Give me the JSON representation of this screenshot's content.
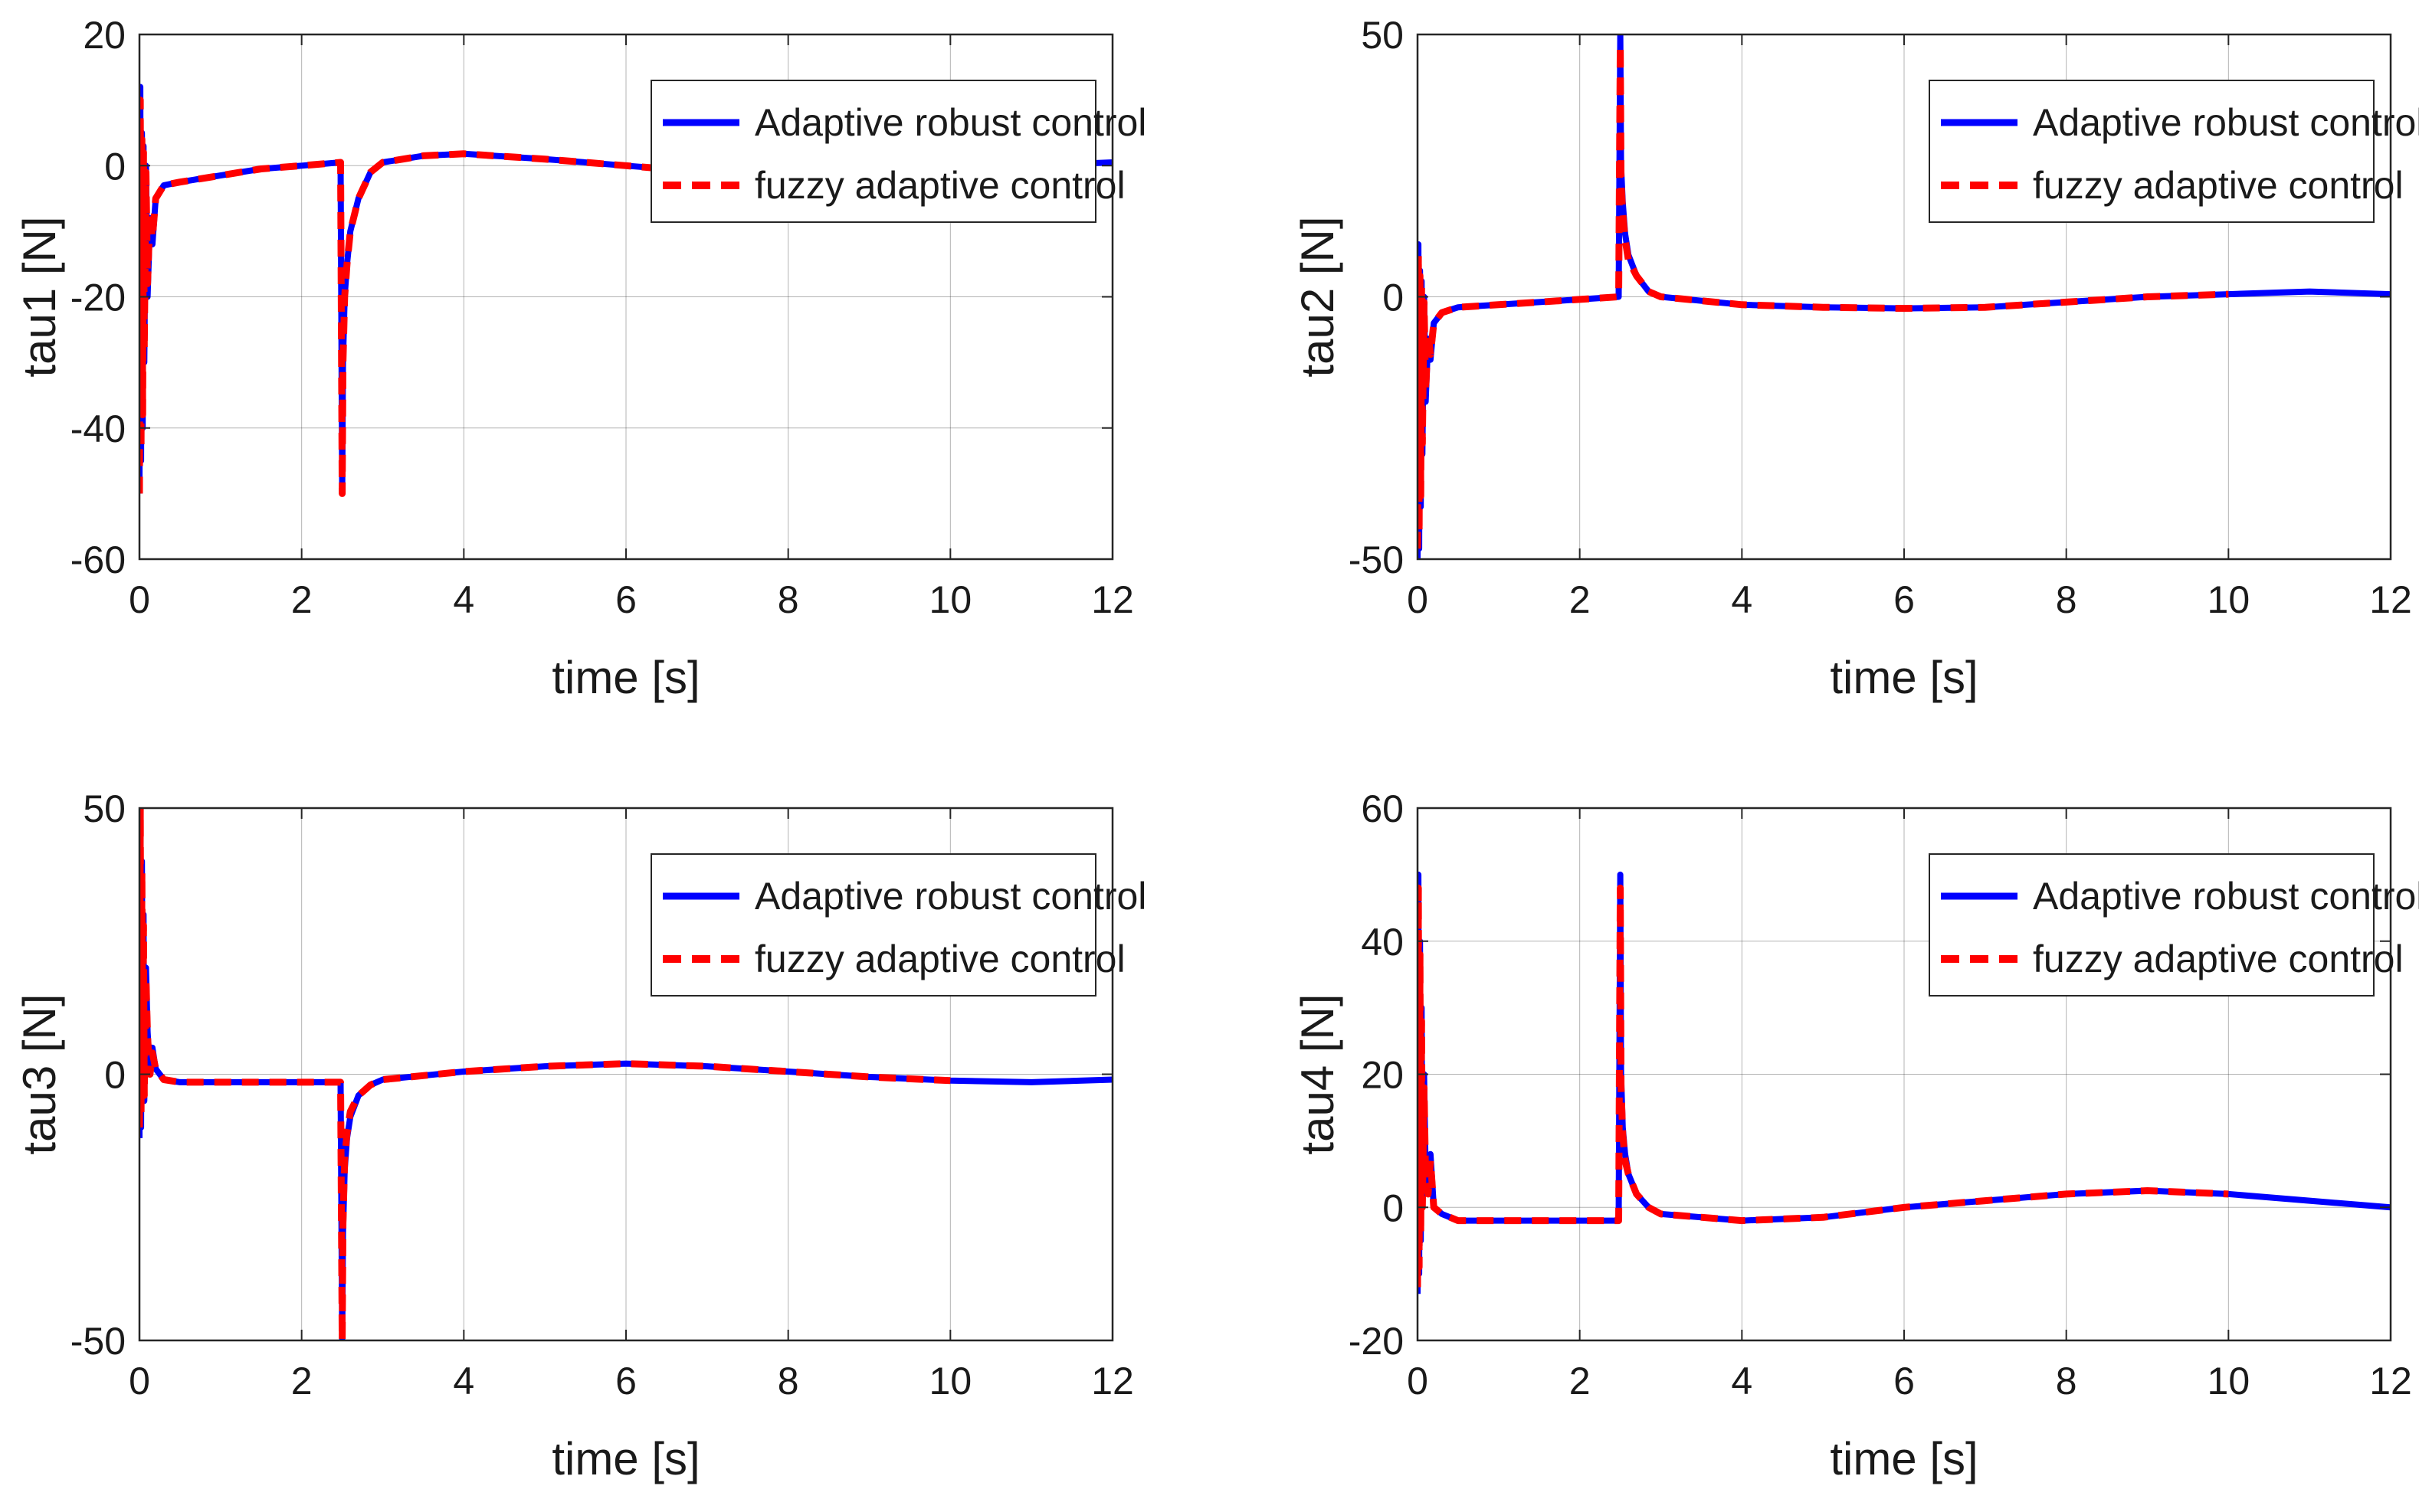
{
  "figure": {
    "colors": {
      "adaptive": "#0000ff",
      "fuzzy": "#ff0000",
      "grid": "#262626"
    },
    "xlabel_common": "time [s]"
  },
  "chart_data": [
    {
      "type": "line",
      "title": "",
      "xlabel": "time [s]",
      "ylabel": "tau1 [N]",
      "xlim": [
        0,
        12
      ],
      "ylim": [
        -60,
        20
      ],
      "xticks": [
        "0",
        "2",
        "4",
        "6",
        "8",
        "10",
        "12"
      ],
      "yticks": [
        "-60",
        "-40",
        "-20",
        "0",
        "20"
      ],
      "legend": {
        "position": "top-right",
        "entries": [
          "Adaptive robust control",
          "fuzzy adaptive control"
        ]
      },
      "series": [
        {
          "name": "Adaptive robust control",
          "x": [
            0,
            0.01,
            0.02,
            0.03,
            0.04,
            0.05,
            0.06,
            0.08,
            0.1,
            0.13,
            0.16,
            0.2,
            0.3,
            0.5,
            1,
            1.5,
            2,
            2.48,
            2.5,
            2.51,
            2.53,
            2.56,
            2.6,
            2.7,
            2.85,
            3,
            3.5,
            4,
            5,
            6,
            7,
            8,
            9,
            10,
            11,
            12
          ],
          "y": [
            -50,
            12,
            -45,
            5,
            -40,
            3,
            -30,
            0,
            -20,
            -8,
            -12,
            -5,
            -3,
            -2.5,
            -1.5,
            -0.5,
            0,
            0.5,
            -50,
            -30,
            -20,
            -15,
            -10,
            -5,
            -1,
            0.5,
            1.5,
            1.8,
            1,
            0,
            -1,
            -1.5,
            -1,
            -0.5,
            0,
            0.5
          ]
        },
        {
          "name": "fuzzy adaptive control",
          "x": [
            0,
            0.01,
            0.02,
            0.03,
            0.04,
            0.05,
            0.06,
            0.08,
            0.1,
            0.13,
            0.16,
            0.2,
            0.3,
            0.5,
            1,
            1.5,
            2,
            2.48,
            2.5,
            2.51,
            2.53,
            2.56,
            2.6,
            2.7,
            2.85,
            3,
            3.5,
            4,
            5,
            6,
            7,
            8,
            9,
            10
          ],
          "y": [
            -50,
            10,
            -43,
            4,
            -38,
            2,
            -28,
            -1,
            -18,
            -7,
            -11,
            -5,
            -3,
            -2.5,
            -1.5,
            -0.5,
            0,
            0.5,
            -50,
            -30,
            -20,
            -15,
            -10,
            -5,
            -1,
            0.5,
            1.5,
            1.8,
            1,
            0,
            -1,
            -1.5,
            -1,
            -0.5
          ]
        }
      ]
    },
    {
      "type": "line",
      "title": "",
      "xlabel": "time [s]",
      "ylabel": "tau2 [N]",
      "xlim": [
        0,
        12
      ],
      "ylim": [
        -50,
        50
      ],
      "xticks": [
        "0",
        "2",
        "4",
        "6",
        "8",
        "10",
        "12"
      ],
      "yticks": [
        "-50",
        "0",
        "50"
      ],
      "legend": {
        "position": "top-right",
        "entries": [
          "Adaptive robust control",
          "fuzzy adaptive control"
        ]
      },
      "series": [
        {
          "name": "Adaptive robust control",
          "x": [
            0,
            0.01,
            0.02,
            0.03,
            0.04,
            0.05,
            0.06,
            0.08,
            0.1,
            0.13,
            0.16,
            0.2,
            0.3,
            0.5,
            1,
            1.5,
            2,
            2.48,
            2.5,
            2.51,
            2.53,
            2.56,
            2.6,
            2.7,
            2.85,
            3,
            4,
            5,
            6,
            7,
            8,
            9,
            10,
            11,
            12
          ],
          "y": [
            -50,
            10,
            -48,
            5,
            -40,
            3,
            -30,
            0,
            -20,
            -8,
            -12,
            -5,
            -3,
            -2,
            -1.5,
            -1,
            -0.5,
            0,
            50,
            25,
            18,
            12,
            8,
            4,
            1,
            0,
            -1.5,
            -2,
            -2.2,
            -2,
            -1,
            0,
            0.5,
            1,
            0.5
          ]
        },
        {
          "name": "fuzzy adaptive control",
          "x": [
            0,
            0.01,
            0.02,
            0.03,
            0.04,
            0.05,
            0.06,
            0.08,
            0.1,
            0.13,
            0.16,
            0.2,
            0.3,
            0.5,
            1,
            1.5,
            2,
            2.48,
            2.5,
            2.51,
            2.53,
            2.56,
            2.6,
            2.7,
            2.85,
            3,
            4,
            5,
            6,
            7,
            8,
            9,
            10
          ],
          "y": [
            -48,
            8,
            -45,
            4,
            -38,
            2,
            -28,
            -1,
            -18,
            -7,
            -11,
            -5,
            -3,
            -2,
            -1.5,
            -1,
            -0.5,
            0,
            48,
            22,
            16,
            11,
            7,
            4,
            1,
            0,
            -1.5,
            -2,
            -2.2,
            -2,
            -1,
            0,
            0.5
          ]
        }
      ]
    },
    {
      "type": "line",
      "title": "",
      "xlabel": "time [s]",
      "ylabel": "tau3 [N]",
      "xlim": [
        0,
        12
      ],
      "ylim": [
        -50,
        50
      ],
      "xticks": [
        "0",
        "2",
        "4",
        "6",
        "8",
        "10",
        "12"
      ],
      "yticks": [
        "-50",
        "0",
        "50"
      ],
      "legend": {
        "position": "top-right",
        "entries": [
          "Adaptive robust control",
          "fuzzy adaptive control"
        ]
      },
      "series": [
        {
          "name": "Adaptive robust control",
          "x": [
            0,
            0.01,
            0.02,
            0.03,
            0.04,
            0.05,
            0.06,
            0.08,
            0.1,
            0.13,
            0.16,
            0.2,
            0.3,
            0.5,
            1,
            1.5,
            2,
            2.48,
            2.5,
            2.51,
            2.53,
            2.56,
            2.6,
            2.7,
            2.85,
            3,
            4,
            5,
            6,
            7,
            8,
            9,
            10,
            11,
            12
          ],
          "y": [
            -12,
            48,
            -10,
            40,
            0,
            30,
            -5,
            20,
            8,
            0,
            5,
            1,
            -1,
            -1.5,
            -1.5,
            -1.5,
            -1.5,
            -1.5,
            -50,
            -30,
            -18,
            -12,
            -8,
            -4,
            -2,
            -1,
            0.5,
            1.5,
            2,
            1.5,
            0.5,
            -0.5,
            -1.2,
            -1.5,
            -1
          ]
        },
        {
          "name": "fuzzy adaptive control",
          "x": [
            0,
            0.01,
            0.02,
            0.03,
            0.04,
            0.05,
            0.06,
            0.08,
            0.1,
            0.13,
            0.16,
            0.2,
            0.3,
            0.5,
            1,
            1.5,
            2,
            2.48,
            2.5,
            2.51,
            2.53,
            2.56,
            2.6,
            2.7,
            2.85,
            3,
            4,
            5,
            6,
            7,
            8,
            9,
            10
          ],
          "y": [
            -10,
            50,
            -8,
            38,
            0,
            28,
            -4,
            18,
            7,
            0,
            4,
            1,
            -1,
            -1.5,
            -1.5,
            -1.5,
            -1.5,
            -1.5,
            -50,
            -28,
            -16,
            -11,
            -7,
            -4,
            -2,
            -1,
            0.5,
            1.5,
            2,
            1.5,
            0.5,
            -0.5,
            -1.2
          ]
        }
      ]
    },
    {
      "type": "line",
      "title": "",
      "xlabel": "time [s]",
      "ylabel": "tau4 [N]",
      "xlim": [
        0,
        12
      ],
      "ylim": [
        -20,
        60
      ],
      "xticks": [
        "0",
        "2",
        "4",
        "6",
        "8",
        "10",
        "12"
      ],
      "yticks": [
        "-20",
        "0",
        "20",
        "40",
        "60"
      ],
      "legend": {
        "position": "top-right",
        "entries": [
          "Adaptive robust control",
          "fuzzy adaptive control"
        ]
      },
      "series": [
        {
          "name": "Adaptive robust control",
          "x": [
            0,
            0.01,
            0.02,
            0.03,
            0.04,
            0.05,
            0.06,
            0.08,
            0.1,
            0.13,
            0.16,
            0.2,
            0.3,
            0.5,
            1,
            1.5,
            2,
            2.48,
            2.5,
            2.51,
            2.53,
            2.56,
            2.6,
            2.7,
            2.85,
            3,
            4,
            5,
            6,
            7,
            8,
            9,
            10,
            11,
            12
          ],
          "y": [
            -13,
            50,
            -10,
            40,
            -5,
            30,
            0,
            20,
            5,
            2,
            8,
            0,
            -1,
            -2,
            -2,
            -2,
            -2,
            -2,
            50,
            20,
            12,
            8,
            5,
            2,
            0,
            -1,
            -2,
            -1.5,
            0,
            1,
            2,
            2.5,
            2,
            1,
            0
          ]
        },
        {
          "name": "fuzzy adaptive control",
          "x": [
            0,
            0.01,
            0.02,
            0.03,
            0.04,
            0.05,
            0.06,
            0.08,
            0.1,
            0.13,
            0.16,
            0.2,
            0.3,
            0.5,
            1,
            1.5,
            2,
            2.48,
            2.5,
            2.51,
            2.53,
            2.56,
            2.6,
            2.7,
            2.85,
            3,
            4,
            5,
            6,
            7,
            8,
            9,
            10
          ],
          "y": [
            -12,
            48,
            -9,
            38,
            -4,
            28,
            0,
            18,
            4,
            2,
            7,
            0,
            -1,
            -2,
            -2,
            -2,
            -2,
            -2,
            48,
            18,
            11,
            7,
            5,
            2,
            0,
            -1,
            -2,
            -1.5,
            0,
            1,
            2,
            2.5,
            2
          ]
        }
      ]
    }
  ]
}
